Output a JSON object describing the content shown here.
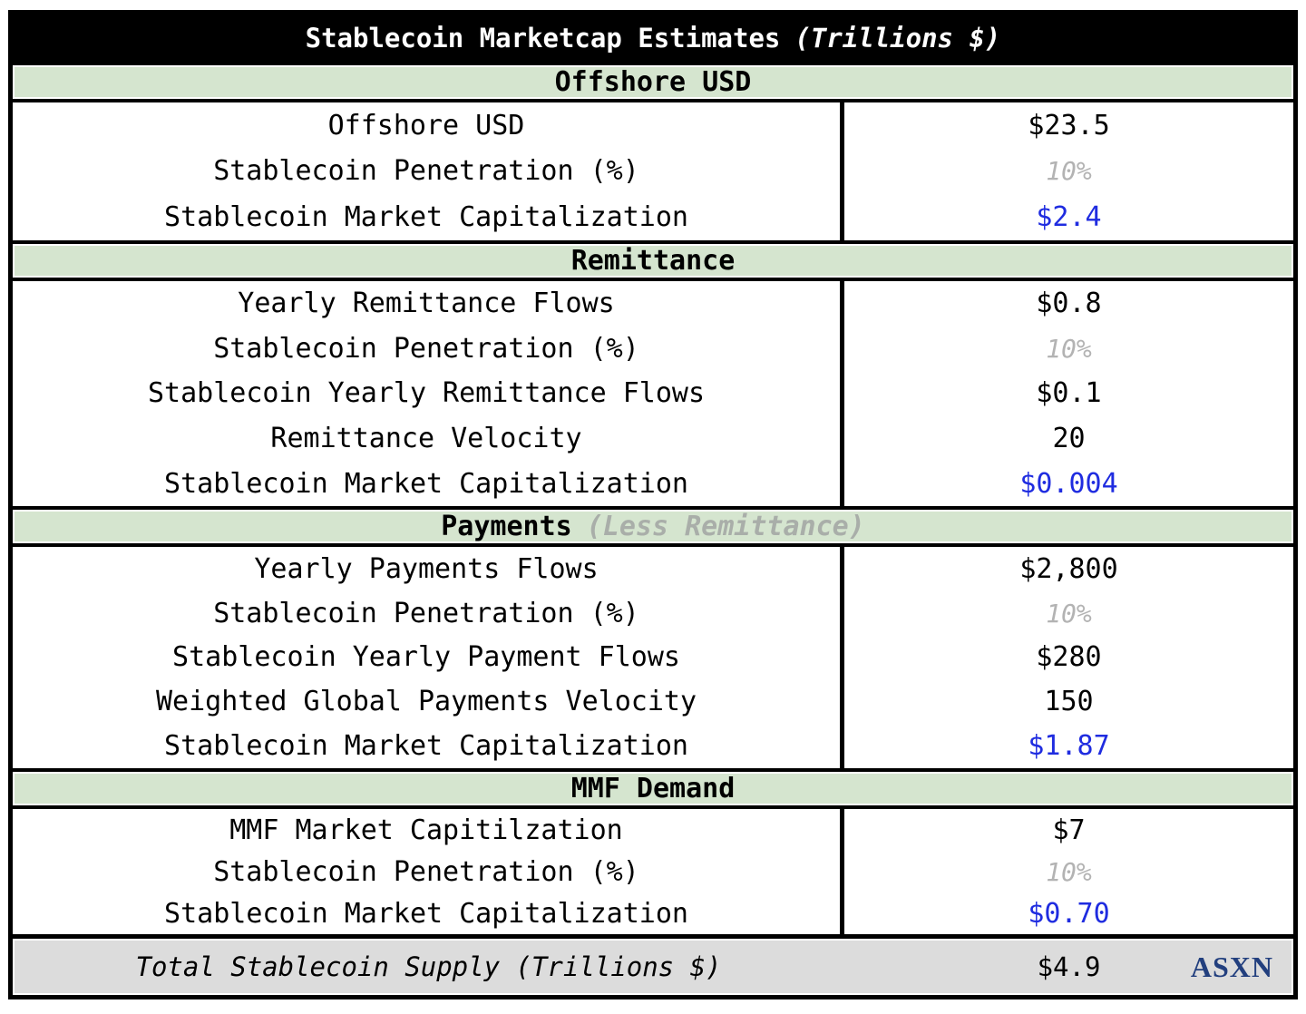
{
  "colors": {
    "header_green": "#d5e5cf",
    "total_gray": "#dcdcdc",
    "value_blue": "#1f2ce0",
    "muted_gray": "#b3b3b3",
    "brand_navy": "#223f7e"
  },
  "chart_data": {
    "type": "table",
    "title": "Stablecoin Marketcap Estimates",
    "title_note": "(Trillions $)",
    "sections": [
      {
        "header": "Offshore USD",
        "header_note": "",
        "rows": [
          {
            "label": "Offshore USD",
            "value": "$23.5",
            "emphasis": "normal"
          },
          {
            "label": "Stablecoin Penetration (%)",
            "value": "10%",
            "emphasis": "muted"
          },
          {
            "label": "Stablecoin Market Capitalization",
            "value": "$2.4",
            "emphasis": "blue"
          }
        ]
      },
      {
        "header": "Remittance",
        "header_note": "",
        "rows": [
          {
            "label": "Yearly Remittance Flows",
            "value": "$0.8",
            "emphasis": "normal"
          },
          {
            "label": "Stablecoin Penetration (%)",
            "value": "10%",
            "emphasis": "muted"
          },
          {
            "label": "Stablecoin Yearly Remittance Flows",
            "value": "$0.1",
            "emphasis": "normal"
          },
          {
            "label": "Remittance Velocity",
            "value": "20",
            "emphasis": "normal"
          },
          {
            "label": "Stablecoin Market Capitalization",
            "value": "$0.004",
            "emphasis": "blue"
          }
        ]
      },
      {
        "header": "Payments",
        "header_note": "(Less Remittance)",
        "rows": [
          {
            "label": "Yearly Payments Flows",
            "value": "$2,800",
            "emphasis": "normal"
          },
          {
            "label": "Stablecoin Penetration (%)",
            "value": "10%",
            "emphasis": "muted"
          },
          {
            "label": "Stablecoin Yearly Payment Flows",
            "value": "$280",
            "emphasis": "normal"
          },
          {
            "label": "Weighted Global Payments Velocity",
            "value": "150",
            "emphasis": "normal"
          },
          {
            "label": "Stablecoin Market Capitalization",
            "value": "$1.87",
            "emphasis": "blue"
          }
        ]
      },
      {
        "header": "MMF Demand",
        "header_note": "",
        "rows": [
          {
            "label": "MMF Market Capitilzation",
            "value": "$7",
            "emphasis": "normal"
          },
          {
            "label": "Stablecoin Penetration (%)",
            "value": "10%",
            "emphasis": "muted"
          },
          {
            "label": "Stablecoin Market Capitalization",
            "value": "$0.70",
            "emphasis": "blue"
          }
        ]
      }
    ],
    "total": {
      "label": "Total Stablecoin Supply (Trillions $)",
      "value": "$4.9",
      "brand": "ASXN"
    }
  }
}
